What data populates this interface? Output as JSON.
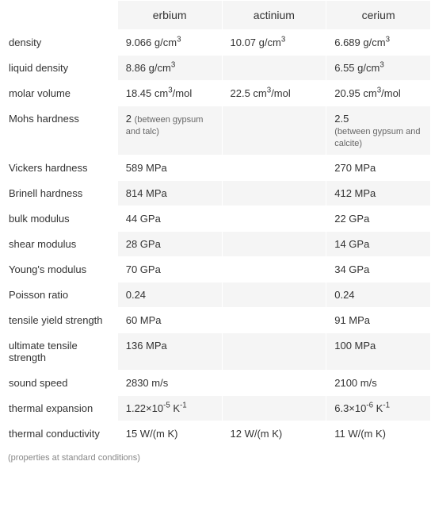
{
  "columns": [
    "",
    "erbium",
    "actinium",
    "cerium"
  ],
  "rows": [
    {
      "label": "density",
      "erbium": "9.066 g/cm³",
      "actinium": "10.07 g/cm³",
      "cerium": "6.689 g/cm³"
    },
    {
      "label": "liquid density",
      "erbium": "8.86 g/cm³",
      "actinium": "",
      "cerium": "6.55 g/cm³"
    },
    {
      "label": "molar volume",
      "erbium": "18.45 cm³/mol",
      "actinium": "22.5 cm³/mol",
      "cerium": "20.95 cm³/mol"
    },
    {
      "label": "Mohs hardness",
      "erbium": "2",
      "erbium_sub": "(between gypsum and talc)",
      "actinium": "",
      "cerium": "2.5",
      "cerium_sub": "(between gypsum and calcite)"
    },
    {
      "label": "Vickers hardness",
      "erbium": "589 MPa",
      "actinium": "",
      "cerium": "270 MPa"
    },
    {
      "label": "Brinell hardness",
      "erbium": "814 MPa",
      "actinium": "",
      "cerium": "412 MPa"
    },
    {
      "label": "bulk modulus",
      "erbium": "44 GPa",
      "actinium": "",
      "cerium": "22 GPa"
    },
    {
      "label": "shear modulus",
      "erbium": "28 GPa",
      "actinium": "",
      "cerium": "14 GPa"
    },
    {
      "label": "Young's modulus",
      "erbium": "70 GPa",
      "actinium": "",
      "cerium": "34 GPa"
    },
    {
      "label": "Poisson ratio",
      "erbium": "0.24",
      "actinium": "",
      "cerium": "0.24"
    },
    {
      "label": "tensile yield strength",
      "erbium": "60 MPa",
      "actinium": "",
      "cerium": "91 MPa"
    },
    {
      "label": "ultimate tensile strength",
      "erbium": "136 MPa",
      "actinium": "",
      "cerium": "100 MPa"
    },
    {
      "label": "sound speed",
      "erbium": "2830 m/s",
      "actinium": "",
      "cerium": "2100 m/s"
    },
    {
      "label": "thermal expansion",
      "erbium": "1.22×10⁻⁵ K⁻¹",
      "actinium": "",
      "cerium": "6.3×10⁻⁶ K⁻¹"
    },
    {
      "label": "thermal conductivity",
      "erbium": "15 W/(m K)",
      "actinium": "12 W/(m K)",
      "cerium": "11 W/(m K)"
    }
  ],
  "footnote": "(properties at standard conditions)",
  "colors": {
    "bg_alt": "#f5f5f5",
    "bg": "#ffffff",
    "text": "#333333",
    "subtext": "#666666",
    "footnote": "#888888"
  },
  "fontsize": {
    "header": 14,
    "cell": 13,
    "subtext": 11,
    "footnote": 11
  }
}
